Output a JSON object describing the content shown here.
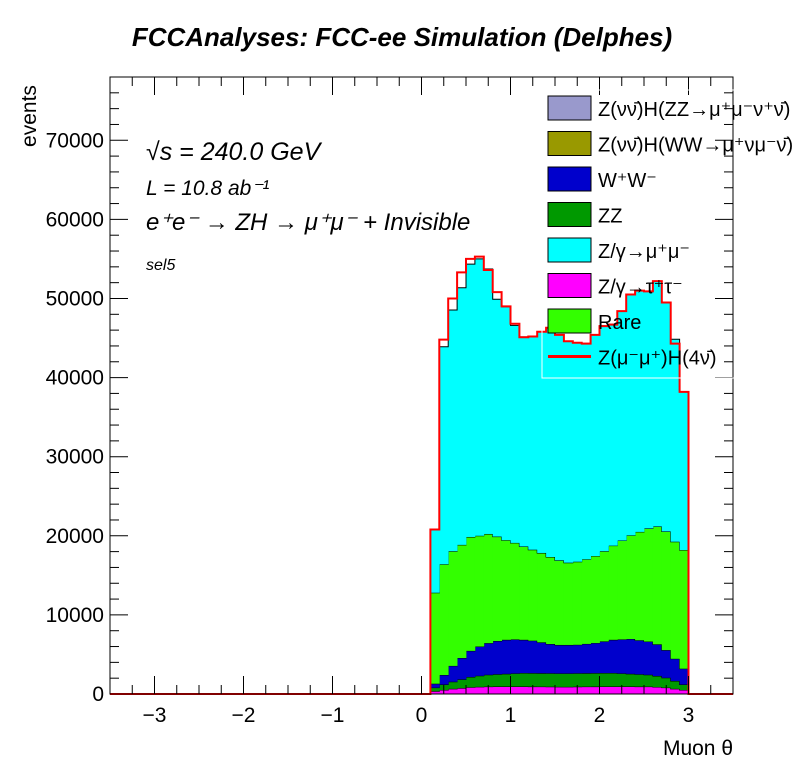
{
  "title": "FCCAnalyses: FCC-ee Simulation (Delphes)",
  "chart_data": {
    "type": "stacked-histogram",
    "xlabel": "Muon θ",
    "ylabel": "events",
    "xlim": [
      -3.5,
      3.5
    ],
    "ylim": [
      0,
      78000
    ],
    "x_ticks": [
      "−3",
      "−2",
      "−1",
      "0",
      "1",
      "2",
      "3"
    ],
    "y_ticks": [
      "0",
      "10000",
      "20000",
      "30000",
      "40000",
      "50000",
      "60000",
      "70000"
    ],
    "bin_width": 0.1,
    "bin_starts": [
      0.1,
      0.2,
      0.3,
      0.4,
      0.5,
      0.6,
      0.7,
      0.8,
      0.9,
      1.0,
      1.1,
      1.2,
      1.3,
      1.4,
      1.5,
      1.6,
      1.7,
      1.8,
      1.9,
      2.0,
      2.1,
      2.2,
      2.3,
      2.4,
      2.5,
      2.6,
      2.7,
      2.8,
      2.9
    ],
    "series": [
      {
        "name": "Z/γ→τ⁺τ⁻",
        "color": "#ff00ff",
        "values": [
          350,
          500,
          650,
          750,
          850,
          900,
          930,
          950,
          950,
          950,
          950,
          940,
          930,
          920,
          900,
          900,
          920,
          930,
          940,
          950,
          950,
          950,
          950,
          940,
          930,
          880,
          800,
          650,
          500
        ]
      },
      {
        "name": "ZZ",
        "color": "#009900",
        "values": [
          450,
          700,
          900,
          1100,
          1300,
          1400,
          1500,
          1550,
          1600,
          1650,
          1700,
          1700,
          1700,
          1700,
          1700,
          1700,
          1700,
          1700,
          1700,
          1700,
          1700,
          1650,
          1600,
          1550,
          1500,
          1400,
          1250,
          1000,
          700
        ]
      },
      {
        "name": "W⁺W⁻",
        "color": "#0000cc",
        "values": [
          500,
          1200,
          2000,
          2700,
          3300,
          3700,
          4000,
          4200,
          4300,
          4300,
          4200,
          4100,
          3900,
          3700,
          3600,
          3600,
          3600,
          3700,
          3800,
          4000,
          4200,
          4300,
          4400,
          4300,
          4200,
          4000,
          3500,
          2800,
          2000
        ]
      },
      {
        "name": "Rare",
        "color": "#33ff00",
        "values": [
          11500,
          14000,
          14500,
          14300,
          14400,
          14000,
          13800,
          13200,
          12600,
          12200,
          11800,
          11500,
          11300,
          11000,
          10700,
          10400,
          10500,
          10700,
          11000,
          11400,
          11900,
          12500,
          13100,
          13700,
          14300,
          14900,
          15000,
          14800,
          15000
        ]
      },
      {
        "name": "Z/γ→μ⁺μ⁻",
        "color": "#00ffff",
        "values": [
          8000,
          27500,
          30500,
          32500,
          34500,
          35000,
          33500,
          30000,
          29500,
          27500,
          26500,
          27000,
          28000,
          29000,
          28500,
          28000,
          27700,
          27300,
          28000,
          28500,
          28000,
          29000,
          30500,
          30500,
          30000,
          31000,
          29000,
          25600,
          20000
        ]
      },
      {
        "name": "Z(νν̄)H(WW→μ⁺νμ⁻ν̄)",
        "color": "#999900",
        "values": []
      },
      {
        "name": "Z(νν̄)H(ZZ→μ⁺μ⁻ν⁺ν̄)",
        "color": "#9999cc",
        "values": []
      }
    ],
    "signal": {
      "name": "Z(μ⁻μ⁺)H(4ν̄)",
      "color": "#ff0000",
      "values": [
        20800,
        44800,
        50000,
        53300,
        55000,
        55300,
        53600,
        50800,
        49000,
        46800,
        45100,
        45200,
        45800,
        46300,
        45400,
        44600,
        44400,
        44300,
        45400,
        46500,
        46700,
        48400,
        50500,
        51000,
        50900,
        52200,
        49500,
        44300,
        38200
      ]
    },
    "legend": {
      "position": "top-right",
      "entries": [
        {
          "label": "Z(νν̄)H(ZZ→μ⁺μ⁻ν⁺ν̄)",
          "color": "#9999cc",
          "style": "box"
        },
        {
          "label": "Z(νν̄)H(WW→μ⁺νμ⁻ν̄)",
          "color": "#999900",
          "style": "box"
        },
        {
          "label": "W⁺W⁻",
          "color": "#0000cc",
          "style": "box"
        },
        {
          "label": "ZZ",
          "color": "#009900",
          "style": "box"
        },
        {
          "label": "Z/γ→μ⁺μ⁻",
          "color": "#00ffff",
          "style": "box"
        },
        {
          "label": "Z/γ→τ⁺τ⁻",
          "color": "#ff00ff",
          "style": "box"
        },
        {
          "label": "Rare",
          "color": "#33ff00",
          "style": "box"
        },
        {
          "label": "Z(μ⁻μ⁺)H(4ν̄)",
          "color": "#ff0000",
          "style": "line"
        }
      ]
    },
    "annotations": {
      "sqrt_s": "√s = 240.0 GeV",
      "lumi": "L = 10.8 ab⁻¹",
      "process": "e⁺e⁻ → ZH → μ⁺μ⁻ + Invisible",
      "selection": "sel5"
    }
  }
}
